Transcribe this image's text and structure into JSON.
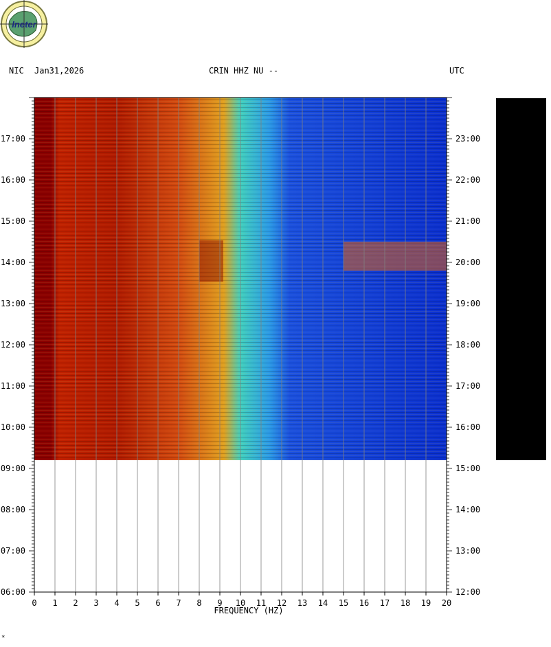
{
  "header": {
    "network": "NIC",
    "date": "Jan31,2026",
    "station": "CRIN HHZ NU --",
    "tz": "UTC"
  },
  "logo": {
    "text": "Ineter",
    "icon": "ineter-globe-logo"
  },
  "corner_mark": "*",
  "colors": {
    "low_energy": "#0a2fd0",
    "mid_energy": "#22d4e0",
    "high_energy": "#f0e030",
    "peak_energy": "#8b0000",
    "grid": "#808080"
  },
  "chart_data": {
    "type": "heatmap",
    "title": "",
    "xlabel": "FREQUENCY (HZ)",
    "ylabel": "",
    "xlim": [
      0,
      20
    ],
    "x_ticks": [
      "0",
      "1",
      "2",
      "3",
      "4",
      "5",
      "6",
      "7",
      "8",
      "9",
      "10",
      "11",
      "12",
      "13",
      "14",
      "15",
      "16",
      "17",
      "18",
      "19",
      "20"
    ],
    "left_time_ticks": [
      "17:00",
      "16:00",
      "15:00",
      "14:00",
      "13:00",
      "12:00",
      "11:00",
      "10:00",
      "09:00",
      "08:00",
      "07:00",
      "06:00"
    ],
    "right_time_ticks": [
      "23:00",
      "22:00",
      "21:00",
      "20:00",
      "19:00",
      "18:00",
      "17:00",
      "16:00",
      "15:00",
      "14:00",
      "13:00",
      "12:00"
    ],
    "time_range_local": [
      "06:00",
      "18:00"
    ],
    "data_end_local": "09:13",
    "grid": true,
    "spectral_bands": [
      {
        "from_hz": 0,
        "to_hz": 0.8,
        "level": "peak"
      },
      {
        "from_hz": 0.8,
        "to_hz": 8,
        "level": "high"
      },
      {
        "from_hz": 8,
        "to_hz": 9.6,
        "level": "high"
      },
      {
        "from_hz": 9.6,
        "to_hz": 11.5,
        "level": "mid"
      },
      {
        "from_hz": 11.5,
        "to_hz": 20,
        "level": "low"
      }
    ]
  }
}
